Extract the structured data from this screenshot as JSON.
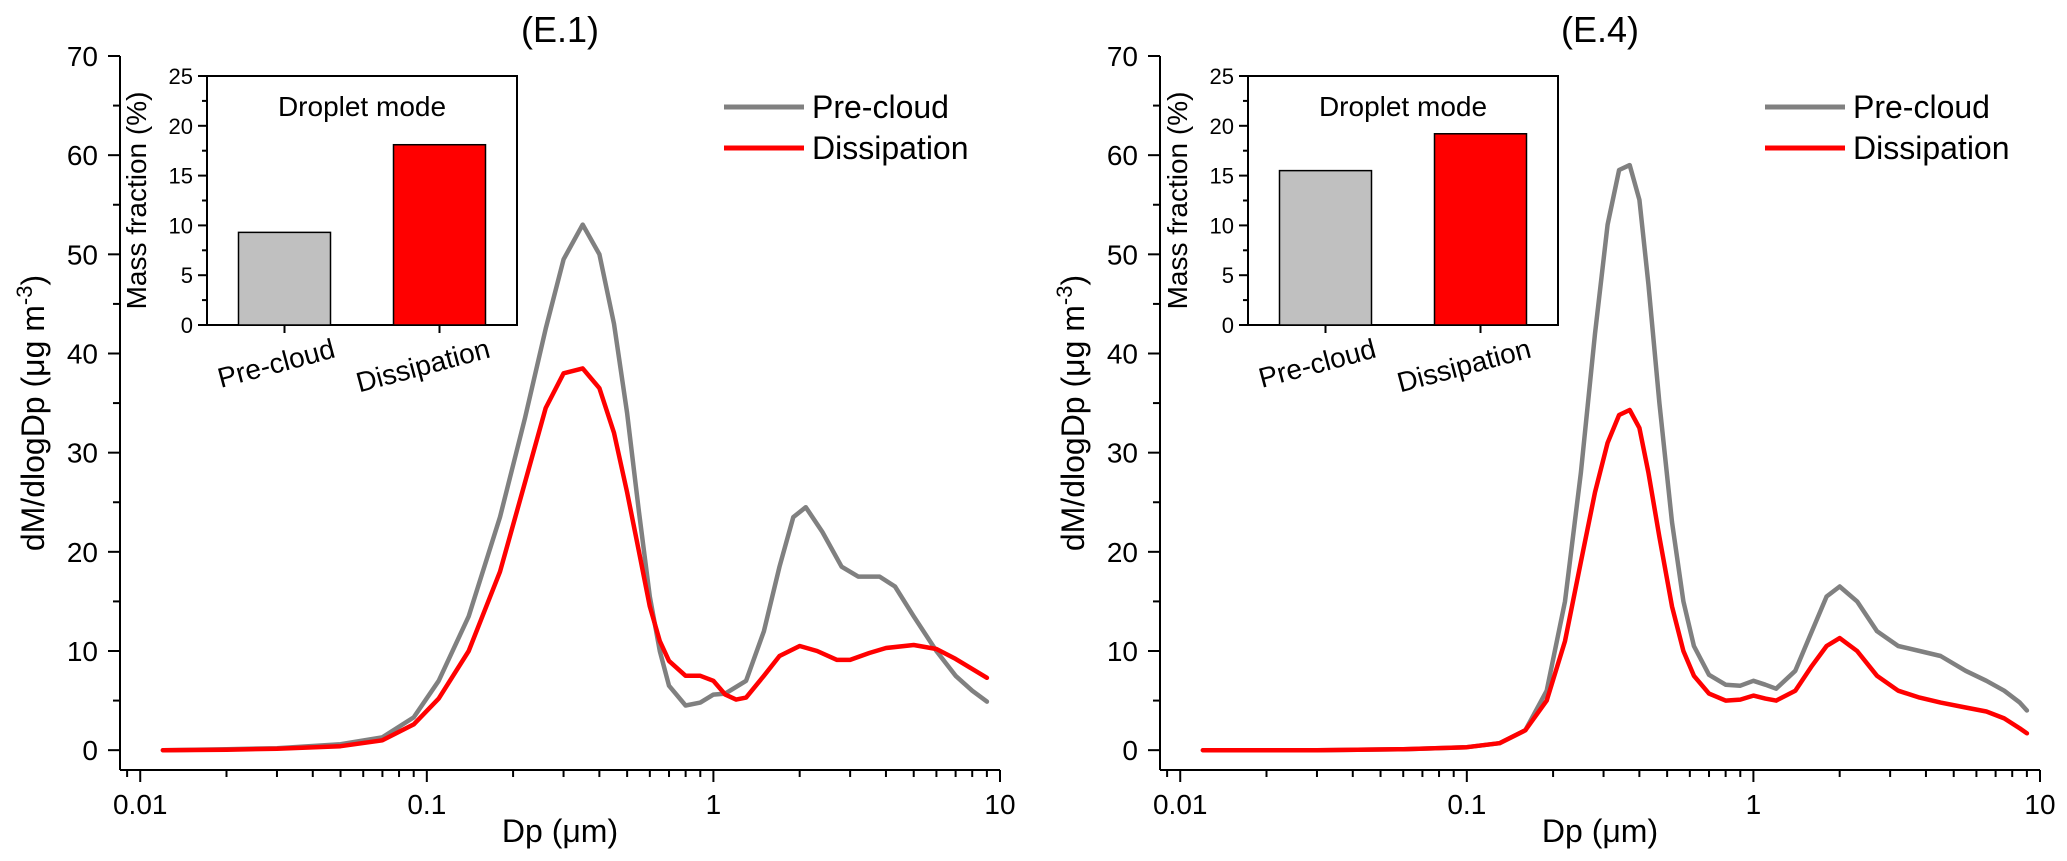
{
  "chart_data": [
    {
      "type": "line",
      "title": "(E.1)",
      "xlabel": "Dp (μm)",
      "ylabel": "dM/dlogDp (μg m",
      "ylabel_sup": "-3",
      "ylabel_close": ")",
      "x_scale": "log",
      "xlim": [
        0.0085,
        10
      ],
      "ylim": [
        -2,
        70
      ],
      "xticks": [
        0.01,
        0.1,
        1,
        10
      ],
      "xtick_labels": [
        "0.01",
        "0.1",
        "1",
        "10"
      ],
      "yticks": [
        0,
        10,
        20,
        30,
        40,
        50,
        60,
        70
      ],
      "ytick_labels": [
        "0",
        "10",
        "20",
        "30",
        "40",
        "50",
        "60",
        "70"
      ],
      "legend_position": "top-right",
      "series": [
        {
          "name": "Pre-cloud",
          "color": "#808080",
          "x": [
            0.012,
            0.02,
            0.03,
            0.05,
            0.07,
            0.09,
            0.11,
            0.14,
            0.18,
            0.22,
            0.26,
            0.3,
            0.35,
            0.4,
            0.45,
            0.5,
            0.55,
            0.6,
            0.65,
            0.7,
            0.8,
            0.9,
            1.0,
            1.1,
            1.3,
            1.5,
            1.7,
            1.9,
            2.1,
            2.4,
            2.8,
            3.2,
            3.8,
            4.3,
            5.0,
            6.0,
            7.0,
            8.0,
            9.0
          ],
          "y": [
            0,
            0.1,
            0.2,
            0.6,
            1.3,
            3.3,
            7.0,
            13.5,
            23.5,
            33.5,
            42.5,
            49.5,
            53.0,
            50.0,
            43.0,
            34.0,
            24.0,
            15.5,
            10.0,
            6.5,
            4.5,
            4.8,
            5.6,
            5.7,
            7.0,
            12.0,
            18.5,
            23.5,
            24.5,
            22.0,
            18.5,
            17.5,
            17.5,
            16.5,
            13.5,
            10.0,
            7.5,
            6.0,
            4.9
          ]
        },
        {
          "name": "Dissipation",
          "color": "#ff0000",
          "x": [
            0.012,
            0.02,
            0.03,
            0.05,
            0.07,
            0.09,
            0.11,
            0.14,
            0.18,
            0.22,
            0.26,
            0.3,
            0.35,
            0.4,
            0.45,
            0.5,
            0.55,
            0.6,
            0.65,
            0.7,
            0.8,
            0.9,
            1.0,
            1.1,
            1.2,
            1.3,
            1.5,
            1.7,
            2.0,
            2.3,
            2.7,
            3.0,
            3.5,
            4.0,
            5.0,
            6.0,
            7.0,
            8.0,
            9.0
          ],
          "y": [
            0,
            0.05,
            0.15,
            0.4,
            1.0,
            2.6,
            5.2,
            10.0,
            18.0,
            27.0,
            34.5,
            38.0,
            38.5,
            36.5,
            32.0,
            26.0,
            20.0,
            14.5,
            11.0,
            9.0,
            7.5,
            7.5,
            7.0,
            5.6,
            5.1,
            5.3,
            7.5,
            9.5,
            10.5,
            10.0,
            9.1,
            9.1,
            9.8,
            10.3,
            10.6,
            10.2,
            9.2,
            8.2,
            7.3
          ]
        }
      ],
      "inset": {
        "type": "bar",
        "title": "Droplet mode",
        "ylabel": "Mass fraction (%)",
        "ylim": [
          0,
          25
        ],
        "yticks": [
          0,
          5,
          10,
          15,
          20,
          25
        ],
        "ytick_labels": [
          "0",
          "5",
          "10",
          "15",
          "20",
          "25"
        ],
        "categories": [
          "Pre-cloud",
          "Dissipation"
        ],
        "values": [
          9.3,
          18.1
        ],
        "colors": [
          "#c0c0c0",
          "#ff0000"
        ]
      }
    },
    {
      "type": "line",
      "title": "(E.4)",
      "xlabel": "Dp (μm)",
      "ylabel": "dM/dlogDp (μg m",
      "ylabel_sup": "-3",
      "ylabel_close": ")",
      "x_scale": "log",
      "xlim": [
        0.0085,
        10
      ],
      "ylim": [
        -2,
        70
      ],
      "xticks": [
        0.01,
        0.1,
        1,
        10
      ],
      "xtick_labels": [
        "0.01",
        "0.1",
        "1",
        "10"
      ],
      "yticks": [
        0,
        10,
        20,
        30,
        40,
        50,
        60,
        70
      ],
      "ytick_labels": [
        "0",
        "10",
        "20",
        "30",
        "40",
        "50",
        "60",
        "70"
      ],
      "legend_position": "top-right",
      "series": [
        {
          "name": "Pre-cloud",
          "color": "#808080",
          "x": [
            0.012,
            0.03,
            0.06,
            0.1,
            0.13,
            0.16,
            0.19,
            0.22,
            0.25,
            0.28,
            0.31,
            0.34,
            0.37,
            0.4,
            0.43,
            0.47,
            0.52,
            0.57,
            0.62,
            0.7,
            0.8,
            0.9,
            1.0,
            1.1,
            1.2,
            1.4,
            1.6,
            1.8,
            2.0,
            2.3,
            2.7,
            3.2,
            3.8,
            4.5,
            5.5,
            6.5,
            7.5,
            8.5,
            9.0
          ],
          "y": [
            0,
            0,
            0.1,
            0.3,
            0.7,
            2.0,
            6.0,
            15.0,
            28.0,
            42.0,
            53.0,
            58.5,
            59.0,
            55.5,
            47.0,
            35.0,
            23.0,
            15.0,
            10.5,
            7.6,
            6.6,
            6.5,
            7.0,
            6.6,
            6.2,
            8.0,
            12.0,
            15.5,
            16.5,
            15.0,
            12.0,
            10.5,
            10.0,
            9.5,
            8.0,
            7.0,
            6.0,
            4.8,
            4.0
          ]
        },
        {
          "name": "Dissipation",
          "color": "#ff0000",
          "x": [
            0.012,
            0.03,
            0.06,
            0.1,
            0.13,
            0.16,
            0.19,
            0.22,
            0.25,
            0.28,
            0.31,
            0.34,
            0.37,
            0.4,
            0.43,
            0.47,
            0.52,
            0.57,
            0.62,
            0.7,
            0.8,
            0.9,
            1.0,
            1.1,
            1.2,
            1.4,
            1.6,
            1.8,
            2.0,
            2.3,
            2.7,
            3.2,
            3.8,
            4.5,
            5.5,
            6.5,
            7.5,
            8.5,
            9.0
          ],
          "y": [
            0,
            0,
            0.1,
            0.3,
            0.7,
            2.0,
            5.0,
            11.0,
            19.0,
            26.0,
            31.0,
            33.8,
            34.3,
            32.5,
            28.0,
            21.5,
            14.5,
            10.0,
            7.5,
            5.7,
            5.0,
            5.1,
            5.5,
            5.2,
            5.0,
            6.0,
            8.5,
            10.5,
            11.3,
            10.0,
            7.5,
            6.0,
            5.3,
            4.8,
            4.3,
            3.9,
            3.2,
            2.2,
            1.7
          ]
        }
      ],
      "inset": {
        "type": "bar",
        "title": "Droplet mode",
        "ylabel": "Mass fraction (%)",
        "ylim": [
          0,
          25
        ],
        "yticks": [
          0,
          5,
          10,
          15,
          20,
          25
        ],
        "ytick_labels": [
          "0",
          "5",
          "10",
          "15",
          "20",
          "25"
        ],
        "categories": [
          "Pre-cloud",
          "Dissipation"
        ],
        "values": [
          15.5,
          19.2
        ],
        "colors": [
          "#c0c0c0",
          "#ff0000"
        ]
      }
    }
  ]
}
